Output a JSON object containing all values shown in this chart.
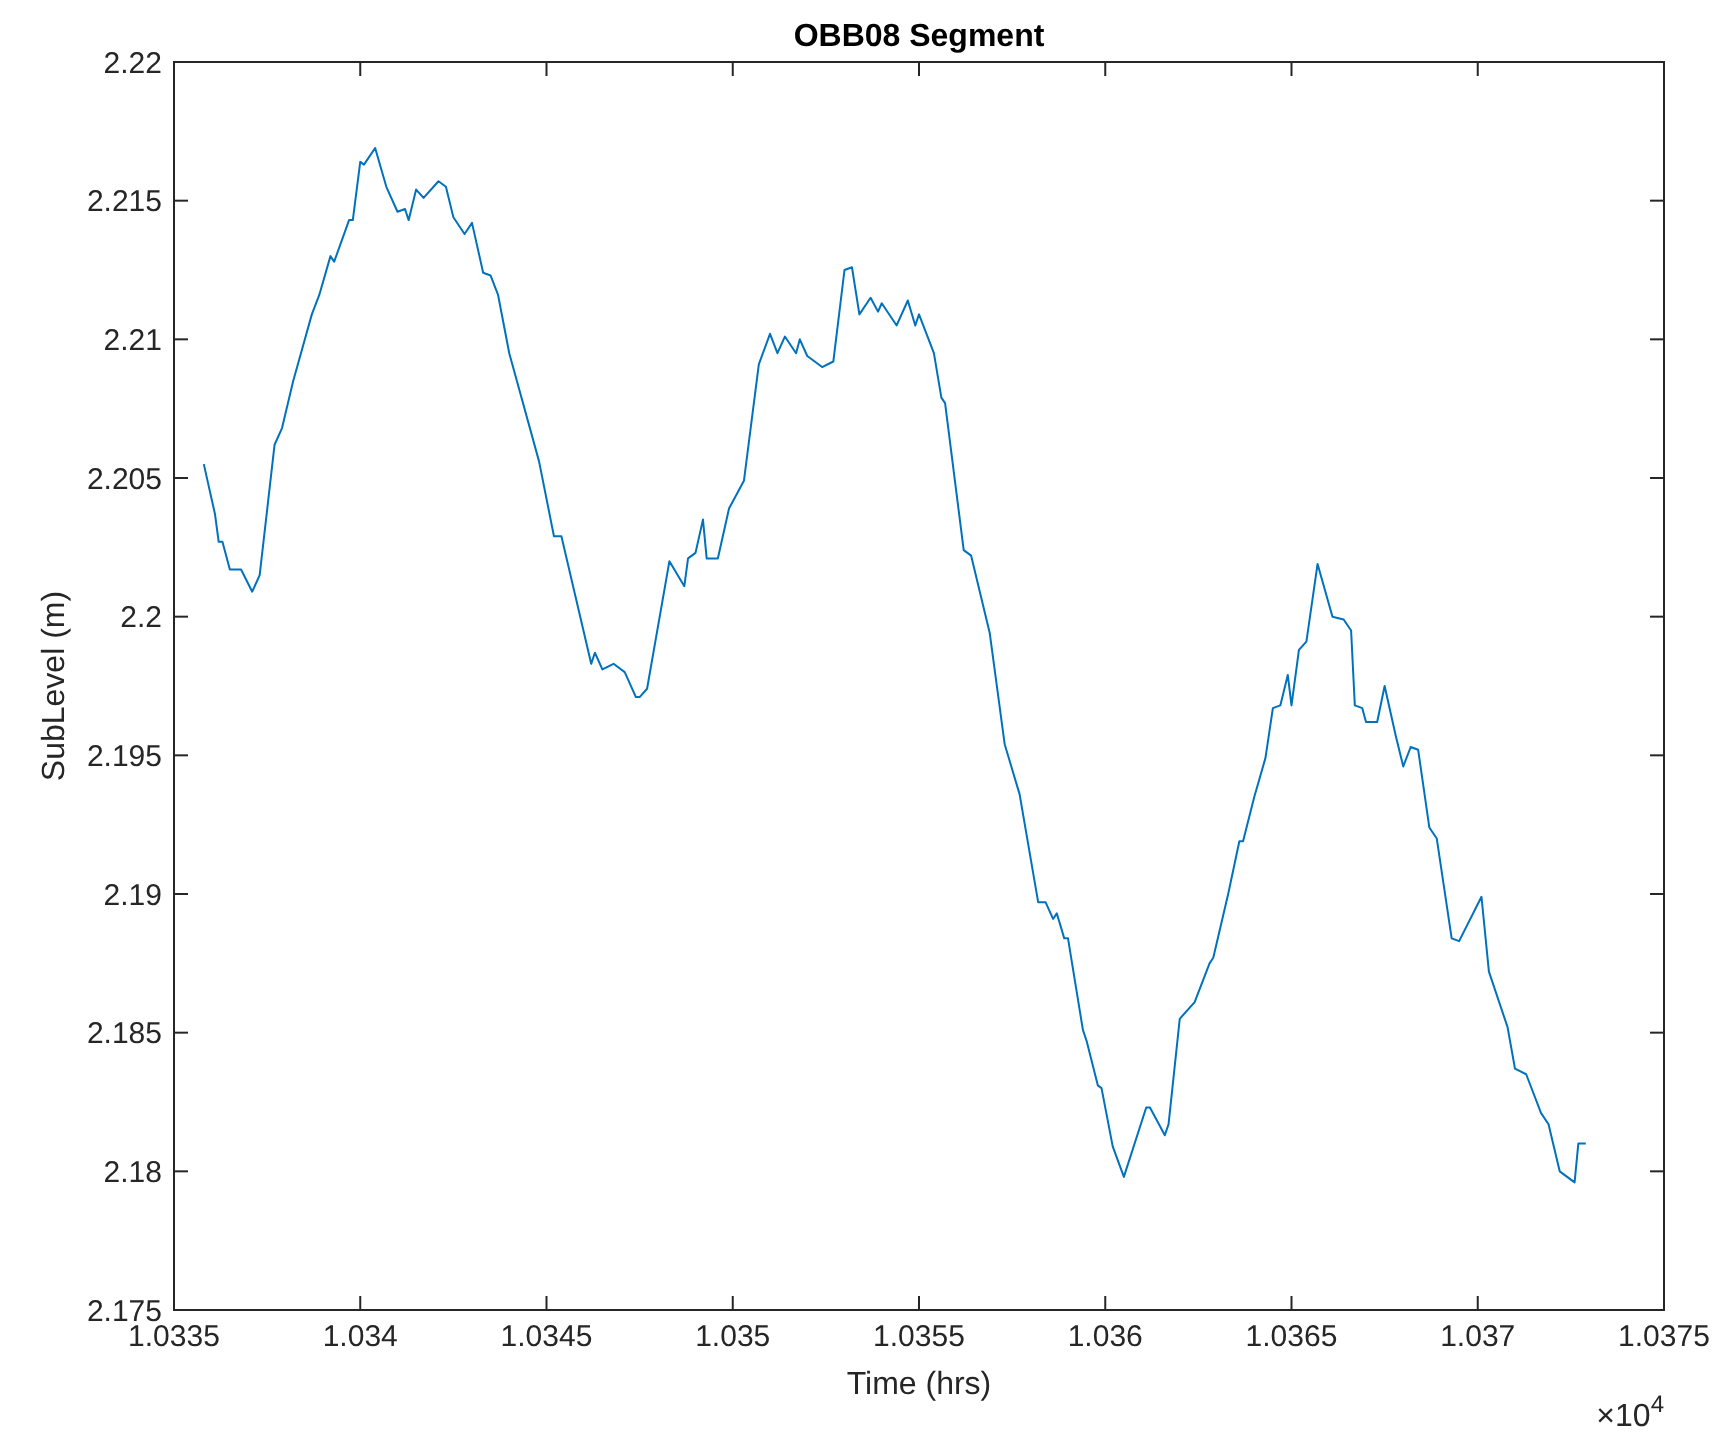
{
  "chart_data": {
    "type": "line",
    "title": "OBB08 Segment",
    "xlabel": "Time (hrs)",
    "ylabel": "SubLevel (m)",
    "xlim": [
      1.0335,
      1.0375
    ],
    "ylim": [
      2.175,
      2.22
    ],
    "xticks": [
      1.0335,
      1.034,
      1.0345,
      1.035,
      1.0355,
      1.036,
      1.0365,
      1.037,
      1.0375
    ],
    "yticks": [
      2.175,
      2.18,
      2.185,
      2.19,
      2.195,
      2.2,
      2.205,
      2.21,
      2.215,
      2.22
    ],
    "annotations": [
      "×10$^{4}$"
    ],
    "grid": false,
    "series": [
      {
        "color": "#0072bd",
        "x": [
          1.03358,
          1.03361,
          1.03362,
          1.03363,
          1.03365,
          1.03368,
          1.03371,
          1.03373,
          1.03377,
          1.03379,
          1.03382,
          1.03387,
          1.03389,
          1.03392,
          1.03393,
          1.03397,
          1.03398,
          1.034,
          1.03401,
          1.03404,
          1.03407,
          1.0341,
          1.03412,
          1.03413,
          1.03415,
          1.03417,
          1.03421,
          1.03423,
          1.03425,
          1.03428,
          1.0343,
          1.03433,
          1.03435,
          1.03437,
          1.0344,
          1.03448,
          1.03452,
          1.03454,
          1.03462,
          1.03463,
          1.03465,
          1.03468,
          1.03471,
          1.03474,
          1.03475,
          1.03477,
          1.03483,
          1.03487,
          1.03488,
          1.0349,
          1.03492,
          1.03493,
          1.03496,
          1.03499,
          1.03503,
          1.03507,
          1.0351,
          1.03512,
          1.03514,
          1.03517,
          1.03518,
          1.0352,
          1.03524,
          1.03527,
          1.0353,
          1.03532,
          1.03534,
          1.03537,
          1.03539,
          1.0354,
          1.03544,
          1.03547,
          1.03549,
          1.0355,
          1.03554,
          1.03556,
          1.03557,
          1.03562,
          1.03564,
          1.03569,
          1.03573,
          1.03577,
          1.03582,
          1.03584,
          1.03586,
          1.03587,
          1.03589,
          1.0359,
          1.03594,
          1.03595,
          1.03598,
          1.03599,
          1.03602,
          1.03605,
          1.03611,
          1.03612,
          1.03616,
          1.03617,
          1.0362,
          1.03624,
          1.03628,
          1.03629,
          1.03633,
          1.03636,
          1.03637,
          1.0364,
          1.03643,
          1.03645,
          1.03647,
          1.03649,
          1.0365,
          1.03652,
          1.03654,
          1.03657,
          1.03661,
          1.03664,
          1.03666,
          1.03667,
          1.03669,
          1.0367,
          1.03673,
          1.03675,
          1.03678,
          1.0368,
          1.03682,
          1.03684,
          1.03687,
          1.03689,
          1.03693,
          1.03695,
          1.03701,
          1.03703,
          1.03708,
          1.0371,
          1.03713,
          1.03717,
          1.03719,
          1.03722,
          1.03726,
          1.03727,
          1.03729
        ],
        "values": [
          2.2055,
          2.2037,
          2.2027,
          2.2027,
          2.2017,
          2.2017,
          2.2009,
          2.2015,
          2.2062,
          2.2068,
          2.2085,
          2.2109,
          2.2116,
          2.213,
          2.2128,
          2.2143,
          2.2143,
          2.2164,
          2.2163,
          2.2169,
          2.2155,
          2.2146,
          2.2147,
          2.2143,
          2.2154,
          2.2151,
          2.2157,
          2.2155,
          2.2144,
          2.2138,
          2.2142,
          2.2124,
          2.2123,
          2.2116,
          2.2095,
          2.2056,
          2.2029,
          2.2029,
          2.1983,
          2.1987,
          2.1981,
          2.1983,
          2.198,
          2.1971,
          2.1971,
          2.1974,
          2.202,
          2.2011,
          2.2021,
          2.2023,
          2.2035,
          2.2021,
          2.2021,
          2.2039,
          2.2049,
          2.2091,
          2.2102,
          2.2095,
          2.2101,
          2.2095,
          2.21,
          2.2094,
          2.209,
          2.2092,
          2.2125,
          2.2126,
          2.2109,
          2.2115,
          2.211,
          2.2113,
          2.2105,
          2.2114,
          2.2105,
          2.2109,
          2.2095,
          2.2079,
          2.2077,
          2.2024,
          2.2022,
          2.1994,
          2.1954,
          2.1936,
          2.1897,
          2.1897,
          2.1891,
          2.1893,
          2.1884,
          2.1884,
          2.1851,
          2.1847,
          2.1831,
          2.183,
          2.1809,
          2.1798,
          2.1823,
          2.1823,
          2.1813,
          2.1817,
          2.1855,
          2.1861,
          2.1875,
          2.1877,
          2.19,
          2.1919,
          2.1919,
          2.1935,
          2.1949,
          2.1967,
          2.1968,
          2.1979,
          2.1968,
          2.1988,
          2.1991,
          2.2019,
          2.2,
          2.1999,
          2.1995,
          2.1968,
          2.1967,
          2.1962,
          2.1962,
          2.1975,
          2.1957,
          2.1946,
          2.1953,
          2.1952,
          2.1924,
          2.192,
          2.1884,
          2.1883,
          2.1899,
          2.1872,
          2.1852,
          2.1837,
          2.1835,
          2.1821,
          2.1817,
          2.18,
          2.1796,
          2.181,
          2.181
        ]
      }
    ]
  }
}
